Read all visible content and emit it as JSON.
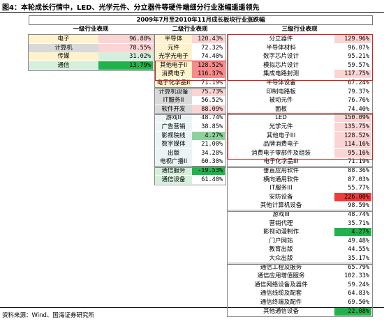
{
  "figure_title": "图4：本轮成长行情中，LED、光学元件、分立器件等硬件端细分行业涨幅遥遥领先",
  "source": "资料来源：Wind、国海证券研究所",
  "table_title": "2009年7月至2010年11月成长板块行业涨跌幅",
  "colors": {
    "red_strong": "#ee3b3b",
    "red_mid": "#f78b8b",
    "red_light": "#fbd4d4",
    "green_strong": "#22b14c",
    "green_mid": "#8fd19e",
    "green_light": "#d6efdc",
    "yellow": "#fff2cc",
    "grey": "#d9d9d9",
    "teal": "#eaf4f4",
    "highlight_box": "#d02020"
  },
  "chart_data": {
    "type": "table",
    "title": "2009年7月至2010年11月成长板块行业涨跌幅",
    "unit": "%",
    "level1": {
      "header": "一级行业表现",
      "rows": [
        {
          "name": "电子",
          "value": "96.88%",
          "bg": "yellow",
          "cell": "red_light"
        },
        {
          "name": "计算机",
          "value": "78.55%",
          "bg": "grey",
          "cell": "red_light"
        },
        {
          "name": "传媒",
          "value": "31.02%",
          "bg": "yellow",
          "cell": "green_light"
        },
        {
          "name": "通信",
          "value": "13.79%",
          "bg": "green_light",
          "cell": "green_strong"
        }
      ]
    },
    "level2": {
      "header": "二级行业表现",
      "rows": [
        {
          "name": "半导体",
          "value": "120.43%",
          "bg": "yellow",
          "cell": "red_light"
        },
        {
          "name": "元件",
          "value": "72.32%",
          "bg": "yellow",
          "cell": "white"
        },
        {
          "name": "光学光电子",
          "value": "74.40%",
          "bg": "yellow",
          "cell": "white"
        },
        {
          "name": "其他电子II",
          "value": "128.52%",
          "bg": "yellow",
          "cell": "red_mid"
        },
        {
          "name": "消费电子",
          "value": "116.37%",
          "bg": "yellow",
          "cell": "red_mid"
        },
        {
          "name": "电子化学品II",
          "value": "71.19%",
          "bg": "yellow",
          "cell": "white"
        },
        {
          "name": "计算机设备",
          "value": "75.73%",
          "bg": "grey",
          "cell": "red_light"
        },
        {
          "name": "IT服务II",
          "value": "56.52%",
          "bg": "grey",
          "cell": "white"
        },
        {
          "name": "软件开发",
          "value": "88.09%",
          "bg": "grey",
          "cell": "red_light"
        },
        {
          "name": "游戏II",
          "value": "48.74%",
          "bg": "teal",
          "cell": "white"
        },
        {
          "name": "广告营销",
          "value": "38.85%",
          "bg": "teal",
          "cell": "white"
        },
        {
          "name": "影视院线",
          "value": "4.27%",
          "bg": "teal",
          "cell": "green_mid"
        },
        {
          "name": "数字媒体",
          "value": "21.00%",
          "bg": "teal",
          "cell": "white"
        },
        {
          "name": "出版",
          "value": "34.28%",
          "bg": "teal",
          "cell": "white"
        },
        {
          "name": "电视广播II",
          "value": "60.30%",
          "bg": "teal",
          "cell": "white"
        },
        {
          "name": "通信服务",
          "value": "-19.53%",
          "bg": "green_light",
          "cell": "green_strong"
        },
        {
          "name": "通信设备",
          "value": "61.40%",
          "bg": "green_light",
          "cell": "white"
        }
      ]
    },
    "level3": {
      "header": "三级行业表现",
      "rows": [
        {
          "name": "分立器件",
          "value": "129.96%",
          "cell": "red_light"
        },
        {
          "name": "半导体材料",
          "value": "96.07%",
          "cell": "white"
        },
        {
          "name": "数字芯片设计",
          "value": "95.21%",
          "cell": "white"
        },
        {
          "name": "模拟芯片设计",
          "value": "59.57%",
          "cell": "white"
        },
        {
          "name": "集成电路封测",
          "value": "117.75%",
          "cell": "red_light"
        },
        {
          "name": "半导体设备",
          "value": "67.24%",
          "cell": "white"
        },
        {
          "name": "印制电路板",
          "value": "79.37%",
          "cell": "white"
        },
        {
          "name": "被动元件",
          "value": "76.76%",
          "cell": "white"
        },
        {
          "name": "面板",
          "value": "74.40%",
          "cell": "white"
        },
        {
          "name": "LED",
          "value": "150.09%",
          "cell": "red_light"
        },
        {
          "name": "光学元件",
          "value": "135.75%",
          "cell": "red_light"
        },
        {
          "name": "其他电子III",
          "value": "128.52%",
          "cell": "red_light"
        },
        {
          "name": "品牌消费电子",
          "value": "114.16%",
          "cell": "red_light"
        },
        {
          "name": "消费电子零部件及组装",
          "value": "95.16%",
          "cell": "red_light"
        },
        {
          "name": "电子化学品III",
          "value": "71.19%",
          "cell": "white"
        },
        {
          "name": "垂直应用软件",
          "value": "88.36%",
          "cell": "white"
        },
        {
          "name": "横向通用软件",
          "value": "87.03%",
          "cell": "white"
        },
        {
          "name": "IT服务III",
          "value": "55.77%",
          "cell": "white"
        },
        {
          "name": "安防设备",
          "value": "226.00%",
          "cell": "red_strong"
        },
        {
          "name": "其他计算机设备",
          "value": "98.59%",
          "cell": "white"
        },
        {
          "name": "游戏III",
          "value": "48.74%",
          "cell": "white"
        },
        {
          "name": "营销代理",
          "value": "35.71%",
          "cell": "white"
        },
        {
          "name": "影视动漫制作",
          "value": "4.27%",
          "cell": "green_strong"
        },
        {
          "name": "门户网站",
          "value": "49.48%",
          "cell": "white"
        },
        {
          "name": "教育出版",
          "value": "44.55%",
          "cell": "white"
        },
        {
          "name": "大众出版",
          "value": "35.17%",
          "cell": "white"
        },
        {
          "name": "通信工程及服务",
          "value": "65.79%",
          "cell": "white"
        },
        {
          "name": "通信应用增值服务",
          "value": "102.33%",
          "cell": "white"
        },
        {
          "name": "通信网络设备及器件",
          "value": "59.24%",
          "cell": "white"
        },
        {
          "name": "通信线缆及配套",
          "value": "64.83%",
          "cell": "white"
        },
        {
          "name": "通信终端及配件",
          "value": "69.50%",
          "cell": "white"
        },
        {
          "name": "其他通信设备",
          "value": "22.08%",
          "cell": "green_strong"
        }
      ]
    }
  }
}
